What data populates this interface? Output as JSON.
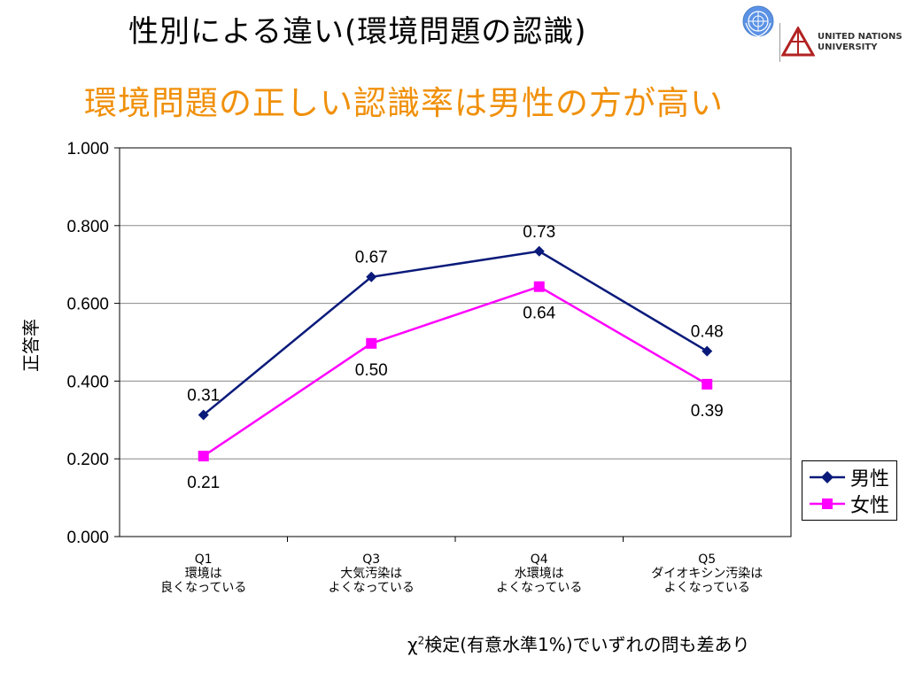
{
  "header": {
    "title": "性別による違い(環境問題の認識)",
    "subtitle": "環境問題の正しい認識率は男性の方が高い",
    "unu_text_line1": "UNITED NATIONS",
    "unu_text_line2": "UNIVERSITY"
  },
  "footnote": {
    "chi": "χ",
    "sup": "2",
    "rest": "検定(有意水準1%)でいずれの問も差あり"
  },
  "colors": {
    "male": "#0a1a7a",
    "female": "#ff00ff",
    "subtitle": "#f0900a"
  },
  "chart_data": {
    "type": "line",
    "ylabel": "正答率",
    "ylim": [
      0,
      1
    ],
    "y_ticks": [
      "0.000",
      "0.200",
      "0.400",
      "0.600",
      "0.800",
      "1.000"
    ],
    "grid": true,
    "legend_position": "right",
    "categories": [
      [
        "Q1",
        "環境は",
        "良くなっている"
      ],
      [
        "Q3",
        "大気汚染は",
        "よくなっている"
      ],
      [
        "Q4",
        "水環境は",
        "よくなっている"
      ],
      [
        "Q5",
        "ダイオキシン汚染は",
        "よくなっている"
      ]
    ],
    "series": [
      {
        "name": "男性",
        "marker": "diamond",
        "values": [
          0.313,
          0.668,
          0.734,
          0.477
        ],
        "labels": [
          "0.31",
          "0.67",
          "0.73",
          "0.48"
        ]
      },
      {
        "name": "女性",
        "marker": "square",
        "values": [
          0.207,
          0.497,
          0.643,
          0.392
        ],
        "labels": [
          "0.21",
          "0.50",
          "0.64",
          "0.39"
        ]
      }
    ]
  }
}
